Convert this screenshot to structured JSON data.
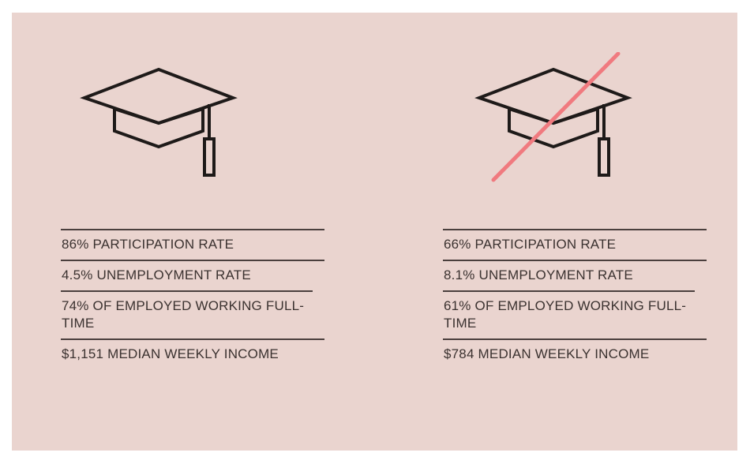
{
  "colors": {
    "background": "#ead4cf",
    "ink": "#3b3230",
    "strike": "#f07a7f"
  },
  "left_column": {
    "icon": "graduation-cap-icon",
    "stats": [
      "86% PARTICIPATION RATE",
      "4.5% UNEMPLOYMENT RATE",
      "74% OF EMPLOYED WORKING FULL-TIME",
      "$1,151 MEDIAN WEEKLY INCOME"
    ]
  },
  "right_column": {
    "icon": "crossed-out-graduation-cap-icon",
    "stats": [
      "66% PARTICIPATION RATE",
      "8.1% UNEMPLOYMENT RATE",
      "61% OF EMPLOYED WORKING FULL-TIME",
      "$784 MEDIAN WEEKLY INCOME"
    ]
  }
}
